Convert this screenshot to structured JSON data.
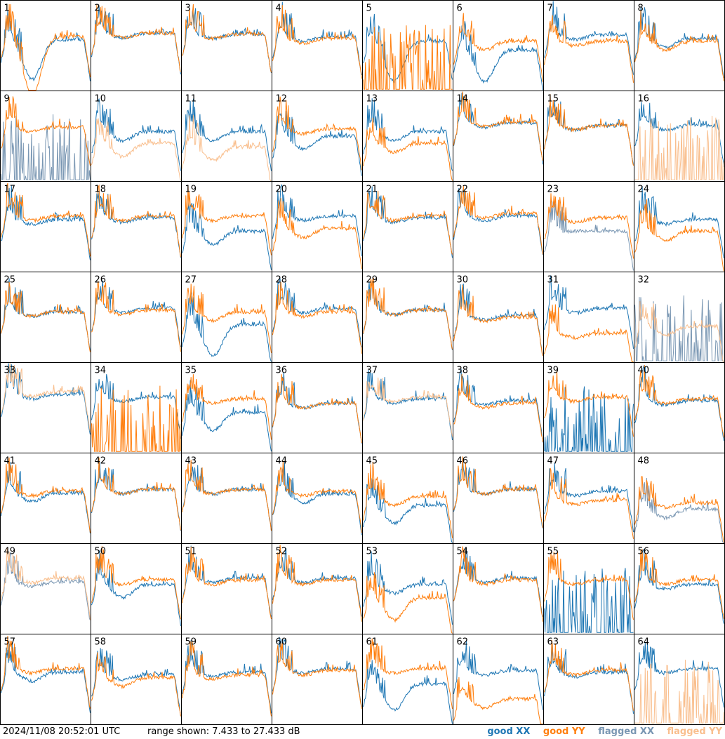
{
  "footer": {
    "timestamp": "2024/11/08 20:52:01 UTC",
    "range_text": "range shown: 7.433 to 27.433 dB"
  },
  "legend": [
    {
      "label": "good XX",
      "color": "#1f77b4"
    },
    {
      "label": "good YY",
      "color": "#ff7f0e"
    },
    {
      "label": "flagged XX",
      "color": "#7a97b3"
    },
    {
      "label": "flagged YY",
      "color": "#f9bf8e"
    }
  ],
  "chart_data": {
    "type": "line",
    "grid_rows": 8,
    "grid_cols": 8,
    "ylim": [
      7.433,
      27.433
    ],
    "yunit": "dB",
    "colors": {
      "good_xx": "#1f77b4",
      "good_yy": "#ff7f0e",
      "flagged_xx": "#7a97b3",
      "flagged_yy": "#f9bf8e"
    },
    "panels": [
      {
        "id": "1",
        "xx": "good",
        "yy": "good",
        "xx_level": 0.57,
        "yy_level": 0.6,
        "xx_dip": 0.45,
        "yy_dip": 0.65
      },
      {
        "id": "2",
        "xx": "good",
        "yy": "good",
        "xx_level": 0.64,
        "yy_level": 0.64,
        "xx_dip": 0.05,
        "yy_dip": 0.05
      },
      {
        "id": "3",
        "xx": "good",
        "yy": "good",
        "xx_level": 0.63,
        "yy_level": 0.63,
        "xx_dip": 0.05,
        "yy_dip": 0.05
      },
      {
        "id": "4",
        "xx": "good",
        "yy": "good",
        "xx_level": 0.6,
        "yy_level": 0.58,
        "xx_dip": 0.05,
        "yy_dip": 0.05
      },
      {
        "id": "5",
        "xx": "good",
        "yy": "good",
        "xx_level": 0.55,
        "yy_level": 0.02,
        "xx_dip": 0.45,
        "yy_dip": 0.0
      },
      {
        "id": "6",
        "xx": "good",
        "yy": "good",
        "xx_level": 0.45,
        "yy_level": 0.55,
        "xx_dip": 0.35,
        "yy_dip": 0.1
      },
      {
        "id": "7",
        "xx": "good",
        "yy": "good",
        "xx_level": 0.62,
        "yy_level": 0.55,
        "xx_dip": 0.05,
        "yy_dip": 0.05
      },
      {
        "id": "8",
        "xx": "good",
        "yy": "good",
        "xx_level": 0.58,
        "yy_level": 0.55,
        "xx_dip": 0.1,
        "yy_dip": 0.1
      },
      {
        "id": "9",
        "xx": "flagged",
        "yy": "good",
        "xx_level": 0.05,
        "yy_level": 0.6,
        "xx_dip": 0.0,
        "yy_dip": 0.05
      },
      {
        "id": "10",
        "xx": "good",
        "yy": "flagged",
        "xx_level": 0.55,
        "yy_level": 0.42,
        "xx_dip": 0.1,
        "yy_dip": 0.15
      },
      {
        "id": "11",
        "xx": "good",
        "yy": "flagged",
        "xx_level": 0.55,
        "yy_level": 0.38,
        "xx_dip": 0.1,
        "yy_dip": 0.15
      },
      {
        "id": "12",
        "xx": "good",
        "yy": "good",
        "xx_level": 0.5,
        "yy_level": 0.58,
        "xx_dip": 0.15,
        "yy_dip": 0.05
      },
      {
        "id": "13",
        "xx": "good",
        "yy": "good",
        "xx_level": 0.55,
        "yy_level": 0.42,
        "xx_dip": 0.1,
        "yy_dip": 0.1
      },
      {
        "id": "14",
        "xx": "good",
        "yy": "good",
        "xx_level": 0.65,
        "yy_level": 0.66,
        "xx_dip": 0.05,
        "yy_dip": 0.05
      },
      {
        "id": "15",
        "xx": "good",
        "yy": "good",
        "xx_level": 0.62,
        "yy_level": 0.62,
        "xx_dip": 0.05,
        "yy_dip": 0.05
      },
      {
        "id": "16",
        "xx": "good",
        "yy": "flagged",
        "xx_level": 0.62,
        "yy_level": 0.0,
        "xx_dip": 0.05,
        "yy_dip": 0.0
      },
      {
        "id": "17",
        "xx": "good",
        "yy": "good",
        "xx_level": 0.58,
        "yy_level": 0.62,
        "xx_dip": 0.05,
        "yy_dip": 0.05
      },
      {
        "id": "18",
        "xx": "good",
        "yy": "good",
        "xx_level": 0.6,
        "yy_level": 0.62,
        "xx_dip": 0.05,
        "yy_dip": 0.05
      },
      {
        "id": "19",
        "xx": "good",
        "yy": "good",
        "xx_level": 0.45,
        "yy_level": 0.62,
        "xx_dip": 0.15,
        "yy_dip": 0.05
      },
      {
        "id": "20",
        "xx": "good",
        "yy": "good",
        "xx_level": 0.62,
        "yy_level": 0.48,
        "xx_dip": 0.05,
        "yy_dip": 0.1
      },
      {
        "id": "21",
        "xx": "good",
        "yy": "good",
        "xx_level": 0.6,
        "yy_level": 0.62,
        "xx_dip": 0.05,
        "yy_dip": 0.05
      },
      {
        "id": "22",
        "xx": "good",
        "yy": "good",
        "xx_level": 0.62,
        "yy_level": 0.65,
        "xx_dip": 0.05,
        "yy_dip": 0.05
      },
      {
        "id": "23",
        "xx": "flagged",
        "yy": "good",
        "xx_level": 0.45,
        "yy_level": 0.6,
        "xx_dip": 0.0,
        "yy_dip": 0.05
      },
      {
        "id": "24",
        "xx": "good",
        "yy": "good",
        "xx_level": 0.58,
        "yy_level": 0.45,
        "xx_dip": 0.05,
        "yy_dip": 0.1
      },
      {
        "id": "25",
        "xx": "good",
        "yy": "good",
        "xx_level": 0.56,
        "yy_level": 0.56,
        "xx_dip": 0.05,
        "yy_dip": 0.05
      },
      {
        "id": "26",
        "xx": "good",
        "yy": "good",
        "xx_level": 0.6,
        "yy_level": 0.58,
        "xx_dip": 0.05,
        "yy_dip": 0.05
      },
      {
        "id": "27",
        "xx": "good",
        "yy": "good",
        "xx_level": 0.42,
        "yy_level": 0.56,
        "xx_dip": 0.35,
        "yy_dip": 0.1
      },
      {
        "id": "28",
        "xx": "good",
        "yy": "good",
        "xx_level": 0.6,
        "yy_level": 0.56,
        "xx_dip": 0.05,
        "yy_dip": 0.05
      },
      {
        "id": "29",
        "xx": "good",
        "yy": "good",
        "xx_level": 0.58,
        "yy_level": 0.58,
        "xx_dip": 0.05,
        "yy_dip": 0.05
      },
      {
        "id": "30",
        "xx": "good",
        "yy": "good",
        "xx_level": 0.52,
        "yy_level": 0.5,
        "xx_dip": 0.05,
        "yy_dip": 0.05
      },
      {
        "id": "31",
        "xx": "good",
        "yy": "good",
        "xx_level": 0.6,
        "yy_level": 0.32,
        "xx_dip": 0.05,
        "yy_dip": 0.05
      },
      {
        "id": "32",
        "xx": "flagged",
        "yy": "flagged",
        "xx_level": 0.0,
        "yy_level": 0.4,
        "xx_dip": 0.0,
        "yy_dip": 0.1
      },
      {
        "id": "33",
        "xx": "good",
        "yy": "flagged",
        "xx_level": 0.65,
        "yy_level": 0.68,
        "xx_dip": 0.05,
        "yy_dip": 0.05
      },
      {
        "id": "34",
        "xx": "good",
        "yy": "good",
        "xx_level": 0.62,
        "yy_level": 0.05,
        "xx_dip": 0.05,
        "yy_dip": 0.0
      },
      {
        "id": "35",
        "xx": "good",
        "yy": "good",
        "xx_level": 0.45,
        "yy_level": 0.6,
        "xx_dip": 0.2,
        "yy_dip": 0.05
      },
      {
        "id": "36",
        "xx": "good",
        "yy": "good",
        "xx_level": 0.55,
        "yy_level": 0.55,
        "xx_dip": 0.05,
        "yy_dip": 0.05
      },
      {
        "id": "37",
        "xx": "good",
        "yy": "flagged",
        "xx_level": 0.6,
        "yy_level": 0.62,
        "xx_dip": 0.05,
        "yy_dip": 0.05
      },
      {
        "id": "38",
        "xx": "good",
        "yy": "good",
        "xx_level": 0.58,
        "yy_level": 0.55,
        "xx_dip": 0.05,
        "yy_dip": 0.05
      },
      {
        "id": "39",
        "xx": "good",
        "yy": "good",
        "xx_level": 0.0,
        "yy_level": 0.62,
        "xx_dip": 0.0,
        "yy_dip": 0.05
      },
      {
        "id": "40",
        "xx": "good",
        "yy": "good",
        "xx_level": 0.58,
        "yy_level": 0.6,
        "xx_dip": 0.05,
        "yy_dip": 0.05
      },
      {
        "id": "41",
        "xx": "good",
        "yy": "good",
        "xx_level": 0.56,
        "yy_level": 0.58,
        "xx_dip": 0.1,
        "yy_dip": 0.05
      },
      {
        "id": "42",
        "xx": "good",
        "yy": "good",
        "xx_level": 0.6,
        "yy_level": 0.6,
        "xx_dip": 0.05,
        "yy_dip": 0.05
      },
      {
        "id": "43",
        "xx": "good",
        "yy": "good",
        "xx_level": 0.6,
        "yy_level": 0.6,
        "xx_dip": 0.05,
        "yy_dip": 0.05
      },
      {
        "id": "44",
        "xx": "good",
        "yy": "good",
        "xx_level": 0.55,
        "yy_level": 0.58,
        "xx_dip": 0.1,
        "yy_dip": 0.05
      },
      {
        "id": "45",
        "xx": "good",
        "yy": "good",
        "xx_level": 0.42,
        "yy_level": 0.52,
        "xx_dip": 0.2,
        "yy_dip": 0.1
      },
      {
        "id": "46",
        "xx": "good",
        "yy": "good",
        "xx_level": 0.6,
        "yy_level": 0.6,
        "xx_dip": 0.05,
        "yy_dip": 0.05
      },
      {
        "id": "47",
        "xx": "good",
        "yy": "good",
        "xx_level": 0.58,
        "yy_level": 0.48,
        "xx_dip": 0.05,
        "yy_dip": 0.05
      },
      {
        "id": "48",
        "xx": "flagged",
        "yy": "good",
        "xx_level": 0.38,
        "yy_level": 0.45,
        "xx_dip": 0.1,
        "yy_dip": 0.05
      },
      {
        "id": "49",
        "xx": "flagged",
        "yy": "flagged",
        "xx_level": 0.58,
        "yy_level": 0.62,
        "xx_dip": 0.05,
        "yy_dip": 0.05
      },
      {
        "id": "50",
        "xx": "good",
        "yy": "good",
        "xx_level": 0.55,
        "yy_level": 0.6,
        "xx_dip": 0.15,
        "yy_dip": 0.05
      },
      {
        "id": "51",
        "xx": "good",
        "yy": "good",
        "xx_level": 0.62,
        "yy_level": 0.6,
        "xx_dip": 0.05,
        "yy_dip": 0.05
      },
      {
        "id": "52",
        "xx": "good",
        "yy": "good",
        "xx_level": 0.62,
        "yy_level": 0.6,
        "xx_dip": 0.05,
        "yy_dip": 0.05
      },
      {
        "id": "53",
        "xx": "good",
        "yy": "good",
        "xx_level": 0.55,
        "yy_level": 0.4,
        "xx_dip": 0.1,
        "yy_dip": 0.25
      },
      {
        "id": "54",
        "xx": "good",
        "yy": "good",
        "xx_level": 0.62,
        "yy_level": 0.6,
        "xx_dip": 0.05,
        "yy_dip": 0.05
      },
      {
        "id": "55",
        "xx": "good",
        "yy": "good",
        "xx_level": 0.08,
        "yy_level": 0.6,
        "xx_dip": 0.0,
        "yy_dip": 0.05
      },
      {
        "id": "56",
        "xx": "good",
        "yy": "good",
        "xx_level": 0.55,
        "yy_level": 0.6,
        "xx_dip": 0.05,
        "yy_dip": 0.05
      },
      {
        "id": "57",
        "xx": "good",
        "yy": "good",
        "xx_level": 0.58,
        "yy_level": 0.62,
        "xx_dip": 0.1,
        "yy_dip": 0.05
      },
      {
        "id": "58",
        "xx": "good",
        "yy": "good",
        "xx_level": 0.55,
        "yy_level": 0.52,
        "xx_dip": 0.05,
        "yy_dip": 0.1
      },
      {
        "id": "59",
        "xx": "good",
        "yy": "good",
        "xx_level": 0.58,
        "yy_level": 0.55,
        "xx_dip": 0.05,
        "yy_dip": 0.05
      },
      {
        "id": "60",
        "xx": "good",
        "yy": "good",
        "xx_level": 0.62,
        "yy_level": 0.6,
        "xx_dip": 0.05,
        "yy_dip": 0.05
      },
      {
        "id": "61",
        "xx": "good",
        "yy": "good",
        "xx_level": 0.45,
        "yy_level": 0.62,
        "xx_dip": 0.3,
        "yy_dip": 0.05
      },
      {
        "id": "62",
        "xx": "good",
        "yy": "good",
        "xx_level": 0.6,
        "yy_level": 0.28,
        "xx_dip": 0.05,
        "yy_dip": 0.1
      },
      {
        "id": "63",
        "xx": "good",
        "yy": "good",
        "xx_level": 0.58,
        "yy_level": 0.6,
        "xx_dip": 0.05,
        "yy_dip": 0.05
      },
      {
        "id": "64",
        "xx": "good",
        "yy": "flagged",
        "xx_level": 0.62,
        "yy_level": 0.0,
        "xx_dip": 0.05,
        "yy_dip": 0.0
      }
    ]
  }
}
